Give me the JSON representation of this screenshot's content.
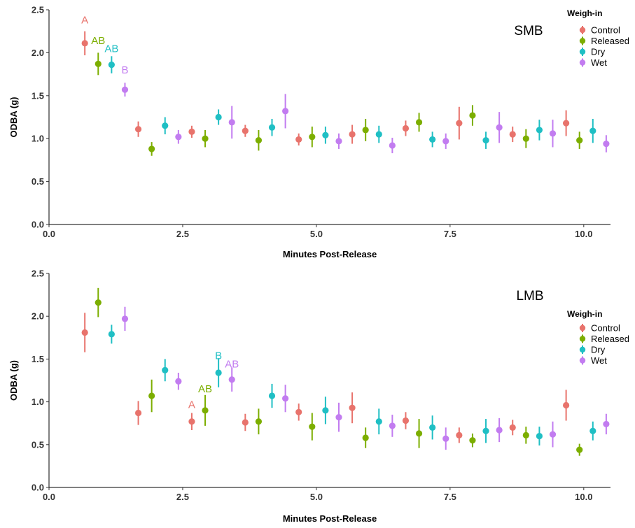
{
  "colors": {
    "Control": "#e8736c",
    "Released": "#7cae00",
    "Dry": "#1fbfc4",
    "Wet": "#c27cf0"
  },
  "chart_data": [
    {
      "type": "scatter",
      "panel_label": "SMB",
      "xlabel": "Minutes Post-Release",
      "ylabel": "ODBA (g)",
      "xlim": [
        0,
        10.5
      ],
      "ylim": [
        0,
        2.5
      ],
      "x_ticks": [
        "0.0",
        "2.5",
        "5.0",
        "7.5",
        "10.0"
      ],
      "y_ticks": [
        "0.0",
        "0.5",
        "1.0",
        "1.5",
        "2.0",
        "2.5"
      ],
      "legend_title": "Weigh-in",
      "legend_position": "top-right",
      "series": [
        {
          "name": "Control",
          "x": [
            0.67,
            1.67,
            2.67,
            3.67,
            4.67,
            5.67,
            6.67,
            7.67,
            8.67,
            9.67
          ],
          "y": [
            2.11,
            1.11,
            1.08,
            1.09,
            0.99,
            1.05,
            1.12,
            1.18,
            1.05,
            1.18
          ],
          "err": [
            0.14,
            0.09,
            0.07,
            0.07,
            0.07,
            0.11,
            0.09,
            0.19,
            0.09,
            0.15
          ]
        },
        {
          "name": "Released",
          "x": [
            0.92,
            1.92,
            2.92,
            3.92,
            4.92,
            5.92,
            6.92,
            7.92,
            8.92,
            9.92
          ],
          "y": [
            1.87,
            0.88,
            1.0,
            0.98,
            1.02,
            1.1,
            1.19,
            1.27,
            1.0,
            0.98
          ],
          "err": [
            0.13,
            0.08,
            0.1,
            0.12,
            0.12,
            0.13,
            0.11,
            0.12,
            0.11,
            0.1
          ]
        },
        {
          "name": "Dry",
          "x": [
            1.17,
            2.17,
            3.17,
            4.17,
            5.17,
            6.17,
            7.17,
            8.17,
            9.17,
            10.17
          ],
          "y": [
            1.86,
            1.15,
            1.25,
            1.13,
            1.04,
            1.05,
            0.99,
            0.98,
            1.1,
            1.09
          ],
          "err": [
            0.1,
            0.1,
            0.09,
            0.1,
            0.1,
            0.1,
            0.09,
            0.1,
            0.12,
            0.14
          ]
        },
        {
          "name": "Wet",
          "x": [
            1.42,
            2.42,
            3.42,
            4.42,
            5.42,
            6.42,
            7.42,
            8.42,
            9.42,
            10.42
          ],
          "y": [
            1.57,
            1.02,
            1.19,
            1.32,
            0.97,
            0.92,
            0.97,
            1.13,
            1.06,
            0.94
          ],
          "err": [
            0.08,
            0.08,
            0.19,
            0.2,
            0.09,
            0.09,
            0.09,
            0.18,
            0.16,
            0.1
          ]
        }
      ],
      "annotations": [
        {
          "text": "A",
          "series": "Control",
          "x": 0.67,
          "y": 2.38
        },
        {
          "text": "AB",
          "series": "Released",
          "x": 0.92,
          "y": 2.14
        },
        {
          "text": "AB",
          "series": "Dry",
          "x": 1.17,
          "y": 2.05
        },
        {
          "text": "B",
          "series": "Wet",
          "x": 1.42,
          "y": 1.8
        }
      ]
    },
    {
      "type": "scatter",
      "panel_label": "LMB",
      "xlabel": "Minutes Post-Release",
      "ylabel": "ODBA (g)",
      "xlim": [
        0,
        10.5
      ],
      "ylim": [
        0,
        2.5
      ],
      "x_ticks": [
        "0.0",
        "2.5",
        "5.0",
        "7.5",
        "10.0"
      ],
      "y_ticks": [
        "0.0",
        "0.5",
        "1.0",
        "1.5",
        "2.0",
        "2.5"
      ],
      "legend_title": "Weigh-in",
      "legend_position": "right",
      "series": [
        {
          "name": "Control",
          "x": [
            0.67,
            1.67,
            2.67,
            3.67,
            4.67,
            5.67,
            6.67,
            7.67,
            8.67,
            9.67
          ],
          "y": [
            1.81,
            0.87,
            0.77,
            0.76,
            0.88,
            0.93,
            0.78,
            0.61,
            0.7,
            0.96
          ],
          "err": [
            0.23,
            0.14,
            0.1,
            0.1,
            0.1,
            0.18,
            0.1,
            0.09,
            0.09,
            0.18
          ]
        },
        {
          "name": "Released",
          "x": [
            0.92,
            1.92,
            2.92,
            3.92,
            4.92,
            5.92,
            6.92,
            7.92,
            8.92,
            9.92
          ],
          "y": [
            2.16,
            1.07,
            0.9,
            0.77,
            0.71,
            0.58,
            0.63,
            0.55,
            0.61,
            0.44
          ],
          "err": [
            0.17,
            0.19,
            0.18,
            0.15,
            0.16,
            0.12,
            0.17,
            0.08,
            0.1,
            0.07
          ]
        },
        {
          "name": "Dry",
          "x": [
            1.17,
            2.17,
            3.17,
            4.17,
            5.17,
            6.17,
            7.17,
            8.17,
            9.17,
            10.17
          ],
          "y": [
            1.79,
            1.37,
            1.34,
            1.07,
            0.9,
            0.77,
            0.7,
            0.66,
            0.6,
            0.66
          ],
          "err": [
            0.11,
            0.13,
            0.17,
            0.14,
            0.16,
            0.15,
            0.14,
            0.14,
            0.11,
            0.11
          ]
        },
        {
          "name": "Wet",
          "x": [
            1.42,
            2.42,
            3.42,
            4.42,
            5.42,
            6.42,
            7.42,
            8.42,
            9.42,
            10.42
          ],
          "y": [
            1.97,
            1.24,
            1.26,
            1.04,
            0.82,
            0.72,
            0.57,
            0.67,
            0.62,
            0.74
          ],
          "err": [
            0.14,
            0.1,
            0.14,
            0.16,
            0.17,
            0.13,
            0.13,
            0.14,
            0.15,
            0.12
          ]
        }
      ],
      "annotations": [
        {
          "text": "A",
          "series": "Control",
          "x": 2.67,
          "y": 0.97
        },
        {
          "text": "AB",
          "series": "Released",
          "x": 2.92,
          "y": 1.15
        },
        {
          "text": "B",
          "series": "Dry",
          "x": 3.17,
          "y": 1.54
        },
        {
          "text": "AB",
          "series": "Wet",
          "x": 3.42,
          "y": 1.44
        }
      ]
    }
  ]
}
